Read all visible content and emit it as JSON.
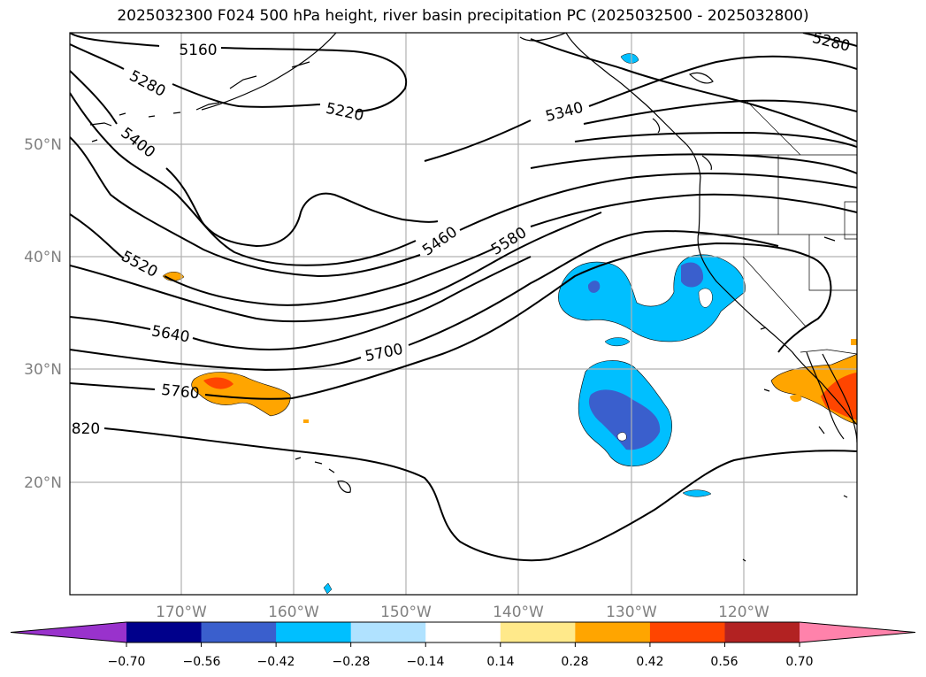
{
  "title": "2025032300 F024 500 hPa height, river basin precipitation PC (2025032500 - 2025032800)",
  "lat_labels": [
    "50°N",
    "40°N",
    "30°N",
    "20°N"
  ],
  "lon_labels": [
    "170°W",
    "160°W",
    "150°W",
    "140°W",
    "130°W",
    "120°W"
  ],
  "contour_labels": [
    "5160",
    "5280",
    "5220",
    "5400",
    "5340",
    "5460",
    "5580",
    "5520",
    "5640",
    "5700",
    "5760",
    "820",
    "5280"
  ],
  "colorbar": {
    "ticks": [
      "−0.70",
      "−0.56",
      "−0.42",
      "−0.28",
      "−0.14",
      "0.14",
      "0.28",
      "0.42",
      "0.56",
      "0.70"
    ],
    "colors": [
      "#9932cc",
      "#00008b",
      "#3a5fcd",
      "#00bfff",
      "#b0e2ff",
      "#ffffff",
      "#ffe98a",
      "#ffa500",
      "#ff4500",
      "#b22222",
      "#ff82ab"
    ]
  }
}
